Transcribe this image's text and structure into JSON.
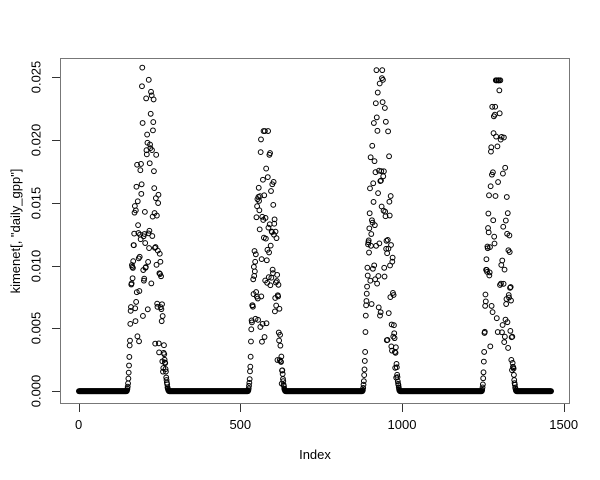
{
  "figure": {
    "background": "#ffffff",
    "point_color": "#000000",
    "box_color": "#777777",
    "tick_color": "#333333"
  },
  "axes": {
    "x": {
      "label": "Index",
      "ticks": [
        0,
        500,
        1000,
        1500
      ],
      "tick_labels": [
        "0",
        "500",
        "1000",
        "1500"
      ],
      "data_range": [
        1,
        1461
      ]
    },
    "y": {
      "label": "kimenet[, \"daily_gpp\"]",
      "ticks": [
        0,
        0.005,
        0.01,
        0.015,
        0.02,
        0.025
      ],
      "tick_labels": [
        "0.000",
        "0.005",
        "0.010",
        "0.015",
        "0.020",
        "0.025"
      ],
      "data_range": [
        0,
        0.0255
      ]
    }
  },
  "chart_data": {
    "type": "scatter",
    "title": "",
    "xlabel": "Index",
    "ylabel": "kimenet[, \"daily_gpp\"]",
    "marker": "open-circle",
    "marker_radius_px": 2.4,
    "n_points": 1461,
    "xlim": [
      0,
      1500
    ],
    "ylim": [
      0,
      0.025
    ],
    "grid": false,
    "legend": false,
    "baseline_value": 0,
    "zero_runs": [
      [
        1,
        147
      ],
      [
        281,
        522
      ],
      [
        641,
        876
      ],
      [
        995,
        1245
      ],
      [
        1355,
        1461
      ]
    ],
    "seasons": [
      {
        "start": 148,
        "end": 280,
        "peak_value": 0.0255,
        "peak_index": 205
      },
      {
        "start": 523,
        "end": 640,
        "peak_value": 0.0205,
        "peak_index": 570
      },
      {
        "start": 877,
        "end": 994,
        "peak_value": 0.0253,
        "peak_index": 928
      },
      {
        "start": 1246,
        "end": 1354,
        "peak_value": 0.0245,
        "peak_index": 1292
      }
    ]
  }
}
